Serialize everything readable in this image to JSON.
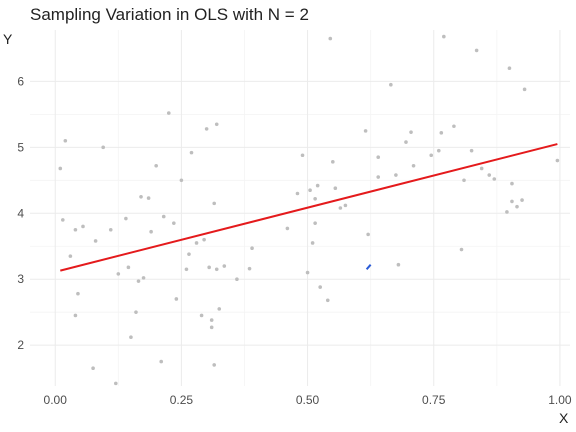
{
  "chart_data": {
    "type": "scatter",
    "title": "Sampling Variation in OLS with N = 2",
    "xlabel": "X",
    "ylabel": "Y",
    "xlim": [
      -0.05,
      1.02
    ],
    "ylim": [
      1.38,
      6.78
    ],
    "x_ticks": [
      0.0,
      0.25,
      0.5,
      0.75,
      1.0
    ],
    "x_tick_labels": [
      "0.00",
      "0.25",
      "0.50",
      "0.75",
      "1.00"
    ],
    "y_ticks": [
      2,
      3,
      4,
      5,
      6
    ],
    "y_tick_labels": [
      "2",
      "3",
      "4",
      "5",
      "6"
    ],
    "grid": true,
    "colors": {
      "points": "#bebebe",
      "fit_line": "#e41a1c",
      "sample_line": "#2a5bd7"
    },
    "points": [
      [
        0.01,
        4.68
      ],
      [
        0.015,
        3.9
      ],
      [
        0.02,
        5.1
      ],
      [
        0.03,
        3.35
      ],
      [
        0.04,
        3.75
      ],
      [
        0.04,
        2.45
      ],
      [
        0.045,
        2.78
      ],
      [
        0.055,
        3.8
      ],
      [
        0.075,
        1.65
      ],
      [
        0.08,
        3.58
      ],
      [
        0.095,
        5.0
      ],
      [
        0.11,
        3.75
      ],
      [
        0.12,
        1.42
      ],
      [
        0.125,
        3.08
      ],
      [
        0.14,
        3.92
      ],
      [
        0.145,
        3.18
      ],
      [
        0.15,
        2.12
      ],
      [
        0.16,
        2.5
      ],
      [
        0.165,
        2.97
      ],
      [
        0.17,
        4.25
      ],
      [
        0.175,
        3.02
      ],
      [
        0.185,
        4.23
      ],
      [
        0.19,
        3.72
      ],
      [
        0.2,
        4.72
      ],
      [
        0.21,
        1.75
      ],
      [
        0.215,
        3.95
      ],
      [
        0.225,
        5.52
      ],
      [
        0.235,
        3.85
      ],
      [
        0.24,
        2.7
      ],
      [
        0.25,
        4.5
      ],
      [
        0.26,
        3.15
      ],
      [
        0.265,
        3.38
      ],
      [
        0.27,
        4.92
      ],
      [
        0.28,
        3.55
      ],
      [
        0.29,
        2.45
      ],
      [
        0.295,
        3.6
      ],
      [
        0.3,
        5.28
      ],
      [
        0.305,
        3.18
      ],
      [
        0.31,
        2.38
      ],
      [
        0.31,
        2.27
      ],
      [
        0.315,
        4.15
      ],
      [
        0.32,
        5.35
      ],
      [
        0.315,
        1.7
      ],
      [
        0.32,
        3.15
      ],
      [
        0.325,
        2.55
      ],
      [
        0.335,
        3.2
      ],
      [
        0.36,
        3.0
      ],
      [
        0.385,
        3.16
      ],
      [
        0.39,
        3.47
      ],
      [
        0.46,
        3.77
      ],
      [
        0.48,
        4.3
      ],
      [
        0.49,
        4.88
      ],
      [
        0.5,
        3.1
      ],
      [
        0.505,
        4.35
      ],
      [
        0.51,
        3.55
      ],
      [
        0.515,
        4.22
      ],
      [
        0.515,
        3.85
      ],
      [
        0.52,
        4.42
      ],
      [
        0.525,
        2.88
      ],
      [
        0.54,
        2.68
      ],
      [
        0.545,
        6.65
      ],
      [
        0.55,
        4.78
      ],
      [
        0.555,
        4.38
      ],
      [
        0.565,
        4.08
      ],
      [
        0.575,
        4.12
      ],
      [
        0.615,
        5.25
      ],
      [
        0.62,
        3.68
      ],
      [
        0.64,
        4.55
      ],
      [
        0.64,
        4.85
      ],
      [
        0.665,
        5.95
      ],
      [
        0.675,
        4.58
      ],
      [
        0.68,
        3.22
      ],
      [
        0.695,
        5.08
      ],
      [
        0.705,
        5.23
      ],
      [
        0.71,
        4.72
      ],
      [
        0.745,
        4.88
      ],
      [
        0.76,
        4.95
      ],
      [
        0.765,
        5.22
      ],
      [
        0.77,
        6.68
      ],
      [
        0.79,
        5.32
      ],
      [
        0.805,
        3.45
      ],
      [
        0.81,
        4.5
      ],
      [
        0.825,
        4.95
      ],
      [
        0.835,
        6.47
      ],
      [
        0.845,
        4.68
      ],
      [
        0.86,
        4.58
      ],
      [
        0.87,
        4.52
      ],
      [
        0.895,
        4.02
      ],
      [
        0.9,
        6.2
      ],
      [
        0.905,
        4.45
      ],
      [
        0.905,
        4.18
      ],
      [
        0.915,
        4.1
      ],
      [
        0.925,
        4.2
      ],
      [
        0.93,
        5.88
      ],
      [
        0.995,
        4.8
      ]
    ],
    "fit_line": {
      "x": [
        0.01,
        0.995
      ],
      "y": [
        3.13,
        5.05
      ]
    },
    "sample_line": {
      "x": [
        0.617,
        0.625
      ],
      "y": [
        3.15,
        3.22
      ]
    }
  }
}
